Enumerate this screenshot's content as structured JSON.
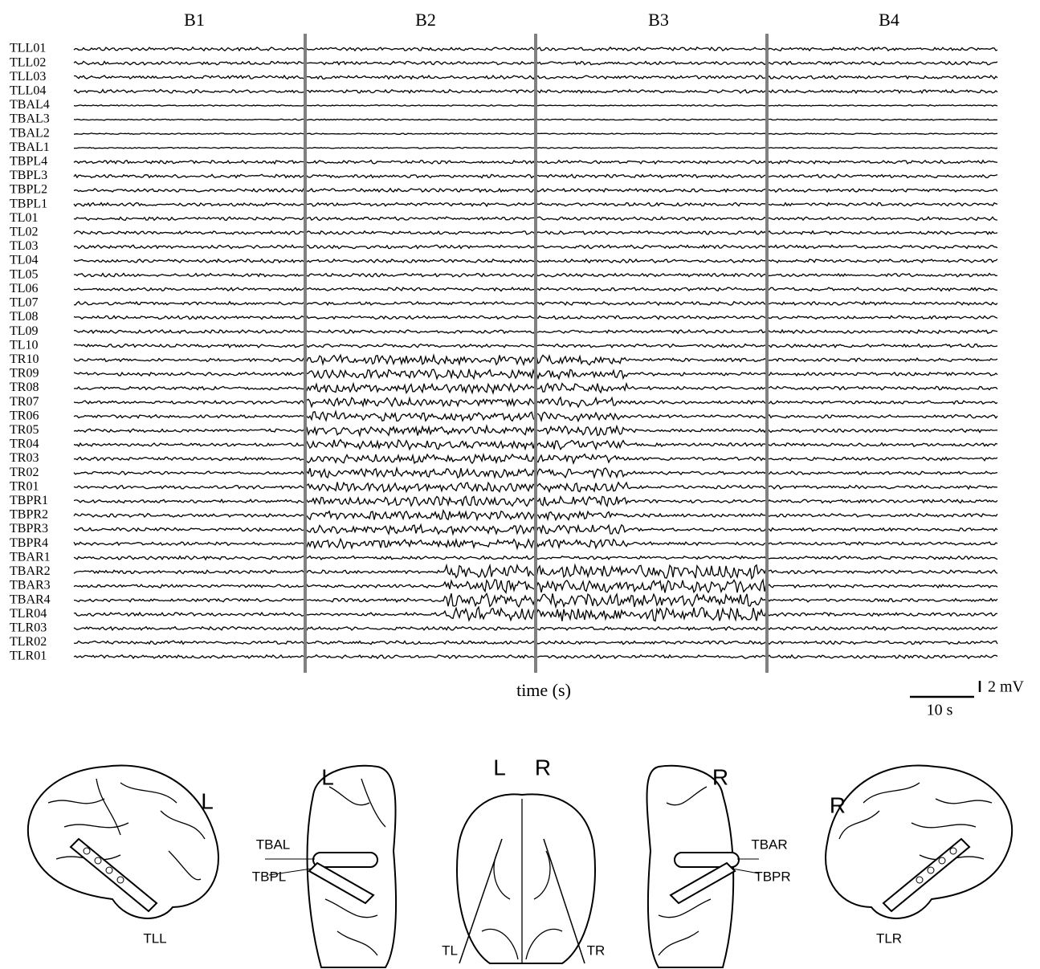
{
  "blocks": [
    "B1",
    "B2",
    "B3",
    "B4"
  ],
  "channels": [
    "TLL01",
    "TLL02",
    "TLL03",
    "TLL04",
    "TBAL4",
    "TBAL3",
    "TBAL2",
    "TBAL1",
    "TBPL4",
    "TBPL3",
    "TBPL2",
    "TBPL1",
    "TL01",
    "TL02",
    "TL03",
    "TL04",
    "TL05",
    "TL06",
    "TL07",
    "TL08",
    "TL09",
    "TL10",
    "TR10",
    "TR09",
    "TR08",
    "TR07",
    "TR06",
    "TR05",
    "TR04",
    "TR03",
    "TR02",
    "TR01",
    "TBPR1",
    "TBPR2",
    "TBPR3",
    "TBPR4",
    "TBAR1",
    "TBAR2",
    "TBAR3",
    "TBAR4",
    "TLR04",
    "TLR03",
    "TLR02",
    "TLR01"
  ],
  "time_axis_label": "time (s)",
  "scale_bar": {
    "voltage": "2 mV",
    "time": "10 s"
  },
  "brain_labels": {
    "left_lateral": {
      "side": "L",
      "strip": "TLL"
    },
    "left_ventral": {
      "side": "L",
      "anterior": "TBAL",
      "posterior": "TBPL"
    },
    "axial": {
      "left": "L",
      "right": "R",
      "left_depth": "TL",
      "right_depth": "TR"
    },
    "right_ventral": {
      "side": "R",
      "anterior": "TBAR",
      "posterior": "TBPR"
    },
    "right_lateral": {
      "side": "R",
      "strip": "TLR"
    }
  }
}
